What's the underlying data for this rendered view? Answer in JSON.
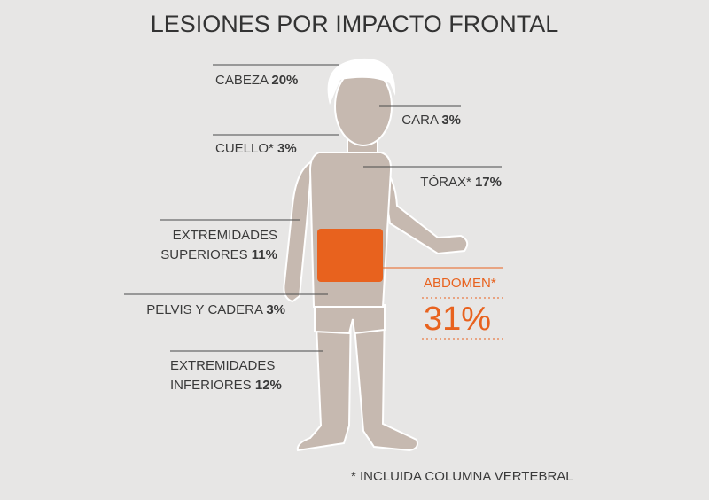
{
  "title": "LESIONES POR IMPACTO FRONTAL",
  "regions": [
    {
      "label": [
        "CABEZA"
      ],
      "value": "20%"
    },
    {
      "label": [
        "CARA"
      ],
      "value": "3%"
    },
    {
      "label": [
        "CUELLO*"
      ],
      "value": "3%"
    },
    {
      "label": [
        "TÓRAX*"
      ],
      "value": "17%"
    },
    {
      "label": [
        "EXTREMIDADES",
        "SUPERIORES"
      ],
      "value": "11%"
    },
    {
      "label": [
        "PELVIS Y CADERA"
      ],
      "value": "3%"
    },
    {
      "label": [
        "EXTREMIDADES",
        "INFERIORES"
      ],
      "value": "12%"
    }
  ],
  "highlight": {
    "label": "ABDOMEN*",
    "value": "31%"
  },
  "footnote": "* INCLUIDA COLUMNA VERTEBRAL"
}
